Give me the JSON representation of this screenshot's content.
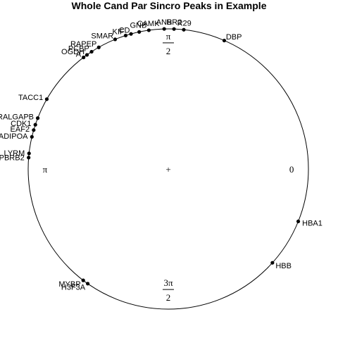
{
  "chart_data": {
    "type": "scatter",
    "title": "Whole Cand Par Sincro Peaks in  Example",
    "coordinate_system": "polar",
    "radial_range": [
      0,
      1
    ],
    "angle_labels": [
      {
        "angle": 0,
        "label": "0"
      },
      {
        "angle": 1.5708,
        "num": "π",
        "den": "2"
      },
      {
        "angle": 3.1416,
        "label": "π"
      },
      {
        "angle": 4.7124,
        "num": "3π",
        "den": "2"
      }
    ],
    "center_marker": "+",
    "points": [
      {
        "name": "DBP",
        "angle": 1.16
      },
      {
        "name": "R29",
        "angle": 1.46
      },
      {
        "name": "RR2",
        "angle": 1.53
      },
      {
        "name": "ANB",
        "angle": 1.6
      },
      {
        "name": "CAMK",
        "angle": 1.71
      },
      {
        "name": "GNB",
        "angle": 1.78
      },
      {
        "name": "CD",
        "angle": 1.84
      },
      {
        "name": "KIF",
        "angle": 1.88
      },
      {
        "name": "SMAR",
        "angle": 1.96
      },
      {
        "name": "RAPEP",
        "angle": 2.09
      },
      {
        "name": "PCBP",
        "angle": 2.15
      },
      {
        "name": "OGDH",
        "angle": 2.19
      },
      {
        "name": "A",
        "angle": 2.22
      },
      {
        "name": "TACC1",
        "angle": 2.62
      },
      {
        "name": "RALGAPB",
        "angle": 2.77
      },
      {
        "name": "CDK1",
        "angle": 2.82
      },
      {
        "name": "EAF2",
        "angle": 2.86
      },
      {
        "name": "ADIPOA",
        "angle": 2.91
      },
      {
        "name": "LYRM",
        "angle": 3.03
      },
      {
        "name": "PBRB2",
        "angle": 3.06
      },
      {
        "name": "HBA1",
        "angle": 5.9
      },
      {
        "name": "HBB",
        "angle": 5.55
      },
      {
        "name": "H3F3A",
        "angle": 4.1
      },
      {
        "name": "MYBP",
        "angle": 4.06
      }
    ]
  }
}
